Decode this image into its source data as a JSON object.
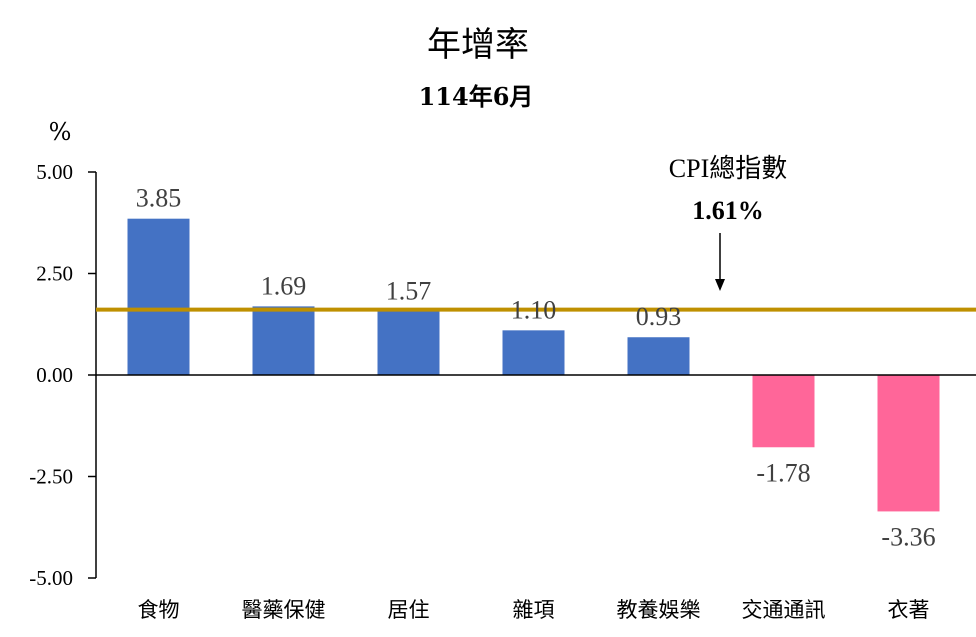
{
  "chart_data": {
    "type": "bar",
    "title": "年增率",
    "subtitle": "114年6月",
    "ylabel": "%",
    "ylim": [
      -5,
      5
    ],
    "yticks": [
      "5.00",
      "2.50",
      "0.00",
      "-2.50",
      "-5.00"
    ],
    "tick_values": [
      5,
      2.5,
      0,
      -2.5,
      -5
    ],
    "categories": [
      "食物",
      "醫藥保健",
      "居住",
      "雜項",
      "教養娛樂",
      "交通通訊",
      "衣著"
    ],
    "values": [
      3.85,
      1.69,
      1.57,
      1.1,
      0.93,
      -1.78,
      -3.36
    ],
    "value_labels": [
      "3.85",
      "1.69",
      "1.57",
      "1.10",
      "0.93",
      "-1.78",
      "-3.36"
    ],
    "colors": {
      "positive": "#4472C4",
      "negative": "#FF6699",
      "reference": "#BF9000"
    },
    "reference_line": {
      "label": "CPI總指數",
      "value_label": "1.61%",
      "value": 1.61
    },
    "grid": false
  }
}
